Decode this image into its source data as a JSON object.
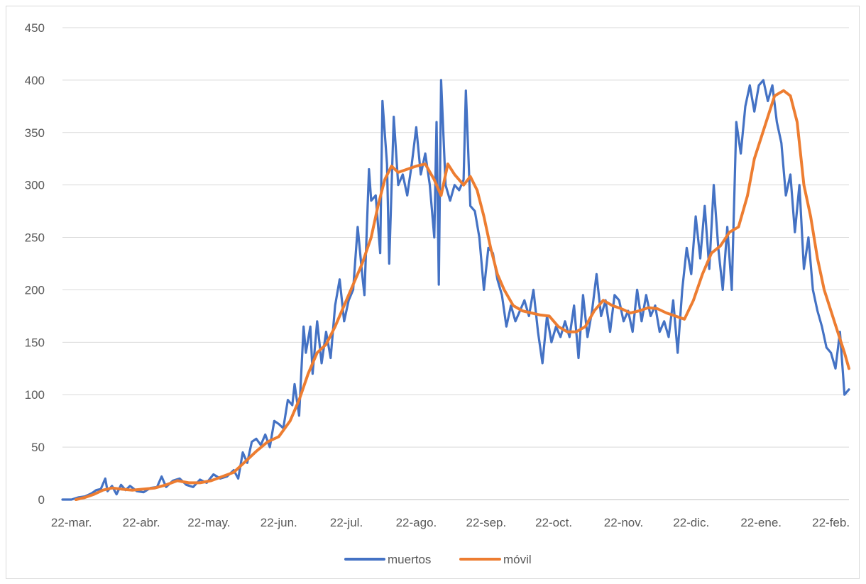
{
  "chart_data": {
    "type": "line",
    "title": "",
    "xlabel": "",
    "ylabel": "",
    "ylim": [
      0,
      450
    ],
    "yticks": [
      0,
      50,
      100,
      150,
      200,
      250,
      300,
      350,
      400,
      450
    ],
    "xlim": [
      "2020-03-18",
      "2021-03-02"
    ],
    "x_tick_labels": [
      {
        "date": "2020-03-22",
        "label": "22-mar."
      },
      {
        "date": "2020-04-22",
        "label": "22-abr."
      },
      {
        "date": "2020-05-22",
        "label": "22-may."
      },
      {
        "date": "2020-06-22",
        "label": "22-jun."
      },
      {
        "date": "2020-07-22",
        "label": "22-jul."
      },
      {
        "date": "2020-08-22",
        "label": "22-ago."
      },
      {
        "date": "2020-09-22",
        "label": "22-sep."
      },
      {
        "date": "2020-10-22",
        "label": "22-oct."
      },
      {
        "date": "2020-11-22",
        "label": "22-nov."
      },
      {
        "date": "2020-12-22",
        "label": "22-dic."
      },
      {
        "date": "2021-01-22",
        "label": "22-ene."
      },
      {
        "date": "2021-02-22",
        "label": "22-feb."
      }
    ],
    "grid": true,
    "legend": "bottom-center",
    "series": [
      {
        "name": "muertos",
        "color": "#4472C4",
        "points": [
          [
            "2020-03-18",
            0
          ],
          [
            "2020-03-22",
            0
          ],
          [
            "2020-03-25",
            2
          ],
          [
            "2020-03-28",
            3
          ],
          [
            "2020-03-31",
            6
          ],
          [
            "2020-04-02",
            9
          ],
          [
            "2020-04-04",
            10
          ],
          [
            "2020-04-06",
            20
          ],
          [
            "2020-04-07",
            8
          ],
          [
            "2020-04-09",
            13
          ],
          [
            "2020-04-11",
            5
          ],
          [
            "2020-04-13",
            14
          ],
          [
            "2020-04-15",
            9
          ],
          [
            "2020-04-17",
            13
          ],
          [
            "2020-04-20",
            8
          ],
          [
            "2020-04-23",
            7
          ],
          [
            "2020-04-26",
            11
          ],
          [
            "2020-04-29",
            12
          ],
          [
            "2020-05-01",
            22
          ],
          [
            "2020-05-03",
            12
          ],
          [
            "2020-05-06",
            18
          ],
          [
            "2020-05-09",
            20
          ],
          [
            "2020-05-12",
            14
          ],
          [
            "2020-05-15",
            12
          ],
          [
            "2020-05-18",
            19
          ],
          [
            "2020-05-21",
            16
          ],
          [
            "2020-05-24",
            24
          ],
          [
            "2020-05-27",
            20
          ],
          [
            "2020-05-30",
            22
          ],
          [
            "2020-06-02",
            28
          ],
          [
            "2020-06-04",
            20
          ],
          [
            "2020-06-06",
            45
          ],
          [
            "2020-06-08",
            35
          ],
          [
            "2020-06-10",
            55
          ],
          [
            "2020-06-12",
            58
          ],
          [
            "2020-06-14",
            52
          ],
          [
            "2020-06-16",
            62
          ],
          [
            "2020-06-18",
            50
          ],
          [
            "2020-06-20",
            75
          ],
          [
            "2020-06-22",
            72
          ],
          [
            "2020-06-24",
            68
          ],
          [
            "2020-06-26",
            95
          ],
          [
            "2020-06-28",
            90
          ],
          [
            "2020-06-29",
            110
          ],
          [
            "2020-07-01",
            80
          ],
          [
            "2020-07-03",
            165
          ],
          [
            "2020-07-04",
            140
          ],
          [
            "2020-07-06",
            165
          ],
          [
            "2020-07-07",
            120
          ],
          [
            "2020-07-09",
            170
          ],
          [
            "2020-07-11",
            130
          ],
          [
            "2020-07-13",
            160
          ],
          [
            "2020-07-15",
            135
          ],
          [
            "2020-07-17",
            185
          ],
          [
            "2020-07-19",
            210
          ],
          [
            "2020-07-21",
            170
          ],
          [
            "2020-07-23",
            190
          ],
          [
            "2020-07-25",
            200
          ],
          [
            "2020-07-27",
            260
          ],
          [
            "2020-07-29",
            215
          ],
          [
            "2020-07-30",
            195
          ],
          [
            "2020-08-01",
            315
          ],
          [
            "2020-08-02",
            285
          ],
          [
            "2020-08-04",
            290
          ],
          [
            "2020-08-06",
            235
          ],
          [
            "2020-08-07",
            380
          ],
          [
            "2020-08-09",
            320
          ],
          [
            "2020-08-10",
            225
          ],
          [
            "2020-08-12",
            365
          ],
          [
            "2020-08-14",
            300
          ],
          [
            "2020-08-16",
            310
          ],
          [
            "2020-08-18",
            290
          ],
          [
            "2020-08-20",
            320
          ],
          [
            "2020-08-22",
            355
          ],
          [
            "2020-08-24",
            310
          ],
          [
            "2020-08-26",
            330
          ],
          [
            "2020-08-28",
            300
          ],
          [
            "2020-08-30",
            250
          ],
          [
            "2020-08-31",
            360
          ],
          [
            "2020-09-01",
            205
          ],
          [
            "2020-09-02",
            400
          ],
          [
            "2020-09-04",
            300
          ],
          [
            "2020-09-06",
            285
          ],
          [
            "2020-09-08",
            300
          ],
          [
            "2020-09-10",
            295
          ],
          [
            "2020-09-12",
            305
          ],
          [
            "2020-09-13",
            390
          ],
          [
            "2020-09-15",
            280
          ],
          [
            "2020-09-17",
            275
          ],
          [
            "2020-09-19",
            250
          ],
          [
            "2020-09-21",
            200
          ],
          [
            "2020-09-23",
            240
          ],
          [
            "2020-09-25",
            235
          ],
          [
            "2020-09-27",
            210
          ],
          [
            "2020-09-29",
            195
          ],
          [
            "2020-10-01",
            165
          ],
          [
            "2020-10-03",
            185
          ],
          [
            "2020-10-05",
            170
          ],
          [
            "2020-10-07",
            180
          ],
          [
            "2020-10-09",
            190
          ],
          [
            "2020-10-11",
            175
          ],
          [
            "2020-10-13",
            200
          ],
          [
            "2020-10-15",
            160
          ],
          [
            "2020-10-17",
            130
          ],
          [
            "2020-10-19",
            175
          ],
          [
            "2020-10-21",
            150
          ],
          [
            "2020-10-23",
            165
          ],
          [
            "2020-10-25",
            155
          ],
          [
            "2020-10-27",
            170
          ],
          [
            "2020-10-29",
            155
          ],
          [
            "2020-10-31",
            185
          ],
          [
            "2020-11-02",
            135
          ],
          [
            "2020-11-04",
            195
          ],
          [
            "2020-11-06",
            155
          ],
          [
            "2020-11-08",
            180
          ],
          [
            "2020-11-10",
            215
          ],
          [
            "2020-11-12",
            175
          ],
          [
            "2020-11-14",
            190
          ],
          [
            "2020-11-16",
            160
          ],
          [
            "2020-11-18",
            195
          ],
          [
            "2020-11-20",
            190
          ],
          [
            "2020-11-22",
            170
          ],
          [
            "2020-11-24",
            180
          ],
          [
            "2020-11-26",
            160
          ],
          [
            "2020-11-28",
            200
          ],
          [
            "2020-11-30",
            170
          ],
          [
            "2020-12-02",
            195
          ],
          [
            "2020-12-04",
            175
          ],
          [
            "2020-12-06",
            185
          ],
          [
            "2020-12-08",
            160
          ],
          [
            "2020-12-10",
            170
          ],
          [
            "2020-12-12",
            155
          ],
          [
            "2020-12-14",
            190
          ],
          [
            "2020-12-16",
            140
          ],
          [
            "2020-12-18",
            200
          ],
          [
            "2020-12-20",
            240
          ],
          [
            "2020-12-22",
            215
          ],
          [
            "2020-12-24",
            270
          ],
          [
            "2020-12-26",
            230
          ],
          [
            "2020-12-28",
            280
          ],
          [
            "2020-12-30",
            220
          ],
          [
            "2021-01-01",
            300
          ],
          [
            "2021-01-03",
            240
          ],
          [
            "2021-01-05",
            200
          ],
          [
            "2021-01-07",
            260
          ],
          [
            "2021-01-09",
            200
          ],
          [
            "2021-01-11",
            360
          ],
          [
            "2021-01-13",
            330
          ],
          [
            "2021-01-15",
            375
          ],
          [
            "2021-01-17",
            395
          ],
          [
            "2021-01-19",
            370
          ],
          [
            "2021-01-21",
            395
          ],
          [
            "2021-01-23",
            400
          ],
          [
            "2021-01-25",
            380
          ],
          [
            "2021-01-27",
            395
          ],
          [
            "2021-01-29",
            360
          ],
          [
            "2021-01-31",
            340
          ],
          [
            "2021-02-02",
            290
          ],
          [
            "2021-02-04",
            310
          ],
          [
            "2021-02-06",
            255
          ],
          [
            "2021-02-08",
            300
          ],
          [
            "2021-02-10",
            220
          ],
          [
            "2021-02-12",
            250
          ],
          [
            "2021-02-14",
            200
          ],
          [
            "2021-02-16",
            180
          ],
          [
            "2021-02-18",
            165
          ],
          [
            "2021-02-20",
            145
          ],
          [
            "2021-02-22",
            140
          ],
          [
            "2021-02-24",
            125
          ],
          [
            "2021-02-26",
            160
          ],
          [
            "2021-02-28",
            100
          ],
          [
            "2021-03-02",
            105
          ]
        ]
      },
      {
        "name": "móvil",
        "color": "#ED7D31",
        "points": [
          [
            "2020-03-24",
            0
          ],
          [
            "2020-03-28",
            2
          ],
          [
            "2020-04-01",
            5
          ],
          [
            "2020-04-05",
            9
          ],
          [
            "2020-04-09",
            11
          ],
          [
            "2020-04-13",
            10
          ],
          [
            "2020-04-18",
            9
          ],
          [
            "2020-04-23",
            10
          ],
          [
            "2020-04-28",
            11
          ],
          [
            "2020-05-03",
            14
          ],
          [
            "2020-05-08",
            18
          ],
          [
            "2020-05-13",
            16
          ],
          [
            "2020-05-18",
            16
          ],
          [
            "2020-05-23",
            18
          ],
          [
            "2020-05-28",
            22
          ],
          [
            "2020-06-02",
            26
          ],
          [
            "2020-06-07",
            36
          ],
          [
            "2020-06-12",
            46
          ],
          [
            "2020-06-17",
            55
          ],
          [
            "2020-06-22",
            60
          ],
          [
            "2020-06-27",
            75
          ],
          [
            "2020-07-01",
            95
          ],
          [
            "2020-07-05",
            120
          ],
          [
            "2020-07-09",
            140
          ],
          [
            "2020-07-13",
            148
          ],
          [
            "2020-07-17",
            165
          ],
          [
            "2020-07-21",
            185
          ],
          [
            "2020-07-25",
            205
          ],
          [
            "2020-07-29",
            225
          ],
          [
            "2020-08-02",
            250
          ],
          [
            "2020-08-05",
            280
          ],
          [
            "2020-08-08",
            305
          ],
          [
            "2020-08-11",
            318
          ],
          [
            "2020-08-14",
            312
          ],
          [
            "2020-08-18",
            315
          ],
          [
            "2020-08-22",
            318
          ],
          [
            "2020-08-26",
            320
          ],
          [
            "2020-08-30",
            305
          ],
          [
            "2020-09-02",
            290
          ],
          [
            "2020-09-05",
            320
          ],
          [
            "2020-09-08",
            310
          ],
          [
            "2020-09-12",
            300
          ],
          [
            "2020-09-15",
            308
          ],
          [
            "2020-09-18",
            295
          ],
          [
            "2020-09-21",
            270
          ],
          [
            "2020-09-24",
            240
          ],
          [
            "2020-09-27",
            215
          ],
          [
            "2020-09-30",
            200
          ],
          [
            "2020-10-04",
            185
          ],
          [
            "2020-10-08",
            180
          ],
          [
            "2020-10-12",
            178
          ],
          [
            "2020-10-16",
            176
          ],
          [
            "2020-10-20",
            175
          ],
          [
            "2020-10-24",
            165
          ],
          [
            "2020-10-28",
            160
          ],
          [
            "2020-11-01",
            160
          ],
          [
            "2020-11-05",
            165
          ],
          [
            "2020-11-09",
            180
          ],
          [
            "2020-11-13",
            190
          ],
          [
            "2020-11-17",
            185
          ],
          [
            "2020-11-21",
            182
          ],
          [
            "2020-11-25",
            178
          ],
          [
            "2020-11-29",
            180
          ],
          [
            "2020-12-03",
            183
          ],
          [
            "2020-12-07",
            182
          ],
          [
            "2020-12-11",
            178
          ],
          [
            "2020-12-15",
            175
          ],
          [
            "2020-12-19",
            172
          ],
          [
            "2020-12-23",
            190
          ],
          [
            "2020-12-27",
            215
          ],
          [
            "2020-12-31",
            235
          ],
          [
            "2021-01-04",
            242
          ],
          [
            "2021-01-08",
            255
          ],
          [
            "2021-01-12",
            260
          ],
          [
            "2021-01-16",
            290
          ],
          [
            "2021-01-19",
            325
          ],
          [
            "2021-01-22",
            345
          ],
          [
            "2021-01-25",
            365
          ],
          [
            "2021-01-28",
            385
          ],
          [
            "2021-02-01",
            390
          ],
          [
            "2021-02-04",
            385
          ],
          [
            "2021-02-07",
            360
          ],
          [
            "2021-02-10",
            300
          ],
          [
            "2021-02-13",
            270
          ],
          [
            "2021-02-16",
            230
          ],
          [
            "2021-02-19",
            200
          ],
          [
            "2021-02-22",
            180
          ],
          [
            "2021-02-25",
            160
          ],
          [
            "2021-02-28",
            140
          ],
          [
            "2021-03-02",
            125
          ]
        ]
      }
    ]
  }
}
